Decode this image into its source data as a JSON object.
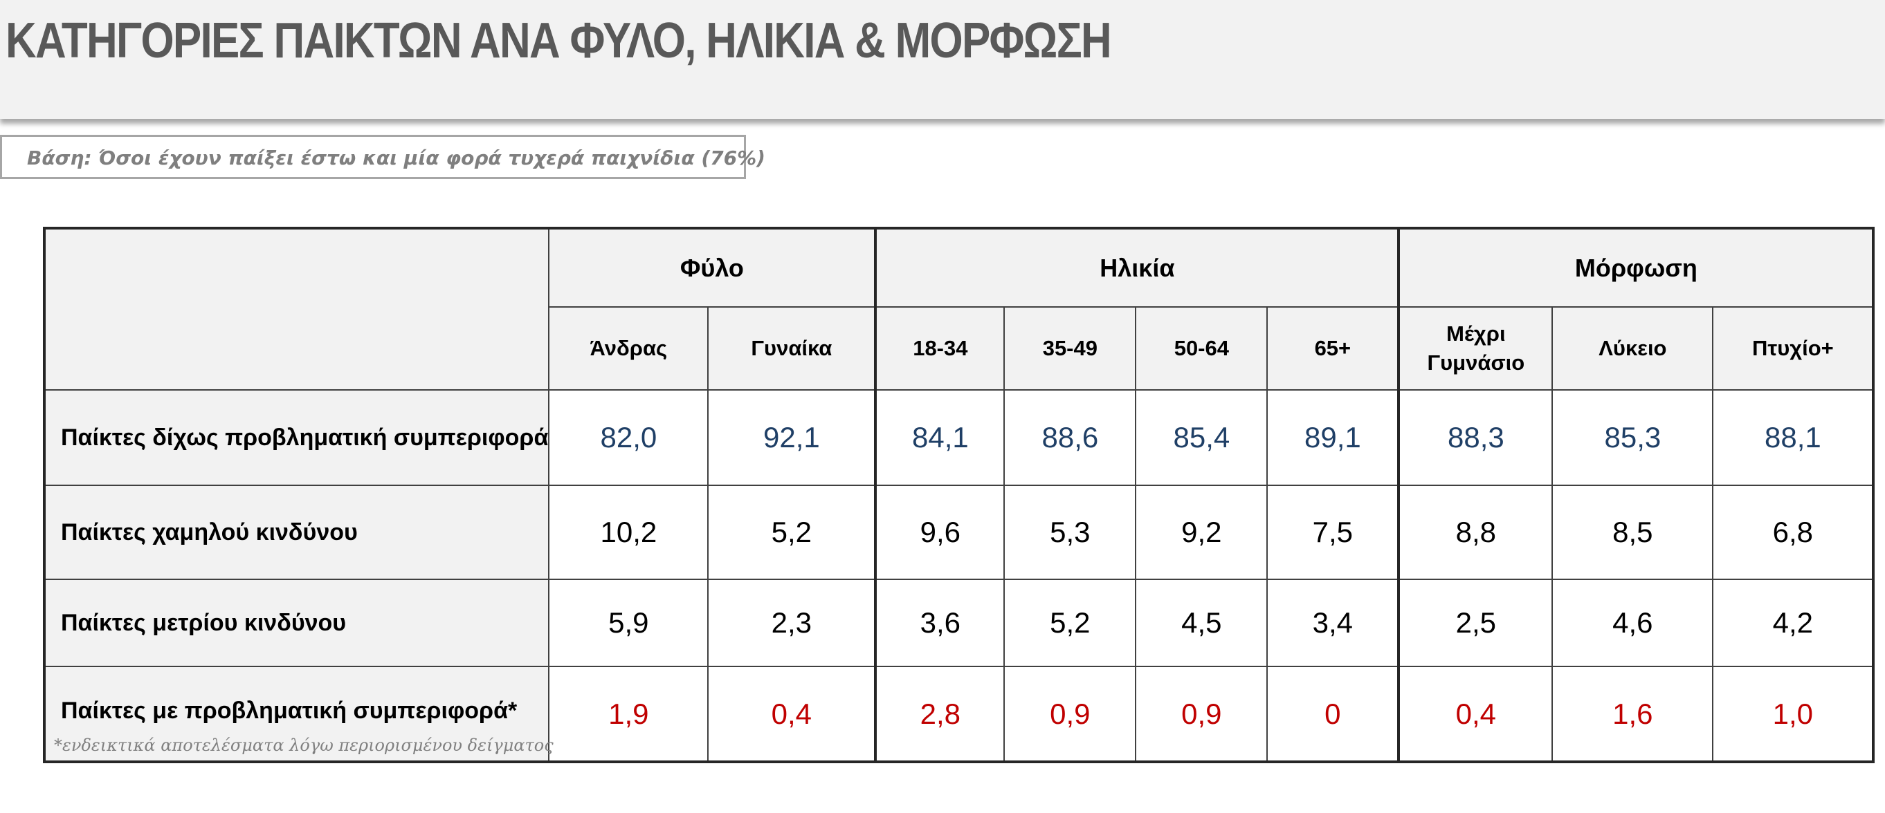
{
  "title": "ΚΑΤΗΓΟΡΙΕΣ ΠΑΙΚΤΩΝ ΑΝΑ ΦΥΛΟ, ΗΛΙΚΙΑ & ΜΟΡΦΩΣΗ",
  "base_note": "Βάση: Όσοι έχουν παίξει έστω και μία φορά τυχερά παιχνίδια (76%)",
  "groups": {
    "gender": "Φύλο",
    "age": "Ηλικία",
    "education": "Μόρφωση"
  },
  "columns": [
    "Άνδρας",
    "Γυναίκα",
    "18-34",
    "35-49",
    "50-64",
    "65+",
    "Μέχρι Γυμνάσιο",
    "Λύκειο",
    "Πτυχίο+"
  ],
  "footnote": "*ενδεικτικά αποτελέσματα λόγω περιορισμένου δείγματος",
  "colors": {
    "blue": "#1f3f66",
    "black": "#000000",
    "red": "#c00000",
    "header_bg": "#f2f2f2"
  },
  "chart_data": {
    "type": "table",
    "title": "ΚΑΤΗΓΟΡΙΕΣ ΠΑΙΚΤΩΝ ΑΝΑ ΦΥΛΟ, ΗΛΙΚΙΑ & ΜΟΡΦΩΣΗ",
    "column_groups": [
      {
        "name": "Φύλο",
        "columns": [
          "Άνδρας",
          "Γυναίκα"
        ]
      },
      {
        "name": "Ηλικία",
        "columns": [
          "18-34",
          "35-49",
          "50-64",
          "65+"
        ]
      },
      {
        "name": "Μόρφωση",
        "columns": [
          "Μέχρι Γυμνάσιο",
          "Λύκειο",
          "Πτυχίο+"
        ]
      }
    ],
    "rows": [
      {
        "label": "Παίκτες δίχως προβληματική συμπεριφορά",
        "color": "blue",
        "values": [
          "82,0",
          "92,1",
          "84,1",
          "88,6",
          "85,4",
          "89,1",
          "88,3",
          "85,3",
          "88,1"
        ]
      },
      {
        "label": "Παίκτες χαμηλού κινδύνου",
        "color": "black",
        "values": [
          "10,2",
          "5,2",
          "9,6",
          "5,3",
          "9,2",
          "7,5",
          "8,8",
          "8,5",
          "6,8"
        ]
      },
      {
        "label": "Παίκτες μετρίου κινδύνου",
        "color": "black",
        "values": [
          "5,9",
          "2,3",
          "3,6",
          "5,2",
          "4,5",
          "3,4",
          "2,5",
          "4,6",
          "4,2"
        ]
      },
      {
        "label": "Παίκτες με προβληματική συμπεριφορά*",
        "color": "red",
        "values": [
          "1,9",
          "0,4",
          "2,8",
          "0,9",
          "0,9",
          "0",
          "0,4",
          "1,6",
          "1,0"
        ]
      }
    ]
  }
}
